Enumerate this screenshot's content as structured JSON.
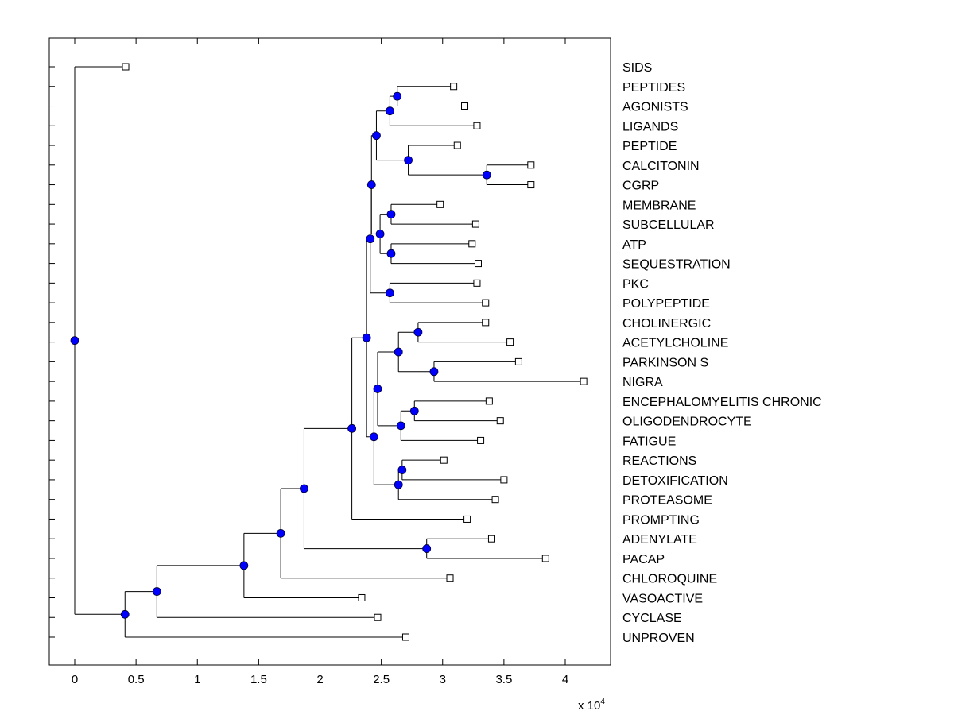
{
  "chart_data": {
    "type": "dendrogram",
    "title": "",
    "xlabel": "",
    "ylabel": "",
    "x_multiplier_label": "x 10",
    "x_multiplier_exponent": "4",
    "xlim": [
      -0.2,
      4.35
    ],
    "xticks": [
      0,
      0.5,
      1,
      1.5,
      2,
      2.5,
      3,
      3.5,
      4
    ],
    "xtick_labels": [
      "0",
      "0.5",
      "1",
      "1.5",
      "2",
      "2.5",
      "3",
      "3.5",
      "4"
    ],
    "grid": false,
    "node_color": "#0000ff",
    "leaves": [
      {
        "label": "SIDS",
        "x": 0.415
      },
      {
        "label": "PEPTIDES",
        "x": 3.09
      },
      {
        "label": "AGONISTS",
        "x": 3.18
      },
      {
        "label": "LIGANDS",
        "x": 3.28
      },
      {
        "label": "PEPTIDE",
        "x": 3.12
      },
      {
        "label": "CALCITONIN",
        "x": 3.72
      },
      {
        "label": "CGRP",
        "x": 3.72
      },
      {
        "label": "MEMBRANE",
        "x": 2.98
      },
      {
        "label": "SUBCELLULAR",
        "x": 3.27
      },
      {
        "label": "ATP",
        "x": 3.24
      },
      {
        "label": "SEQUESTRATION",
        "x": 3.29
      },
      {
        "label": "PKC",
        "x": 3.28
      },
      {
        "label": "POLYPEPTIDE",
        "x": 3.35
      },
      {
        "label": "CHOLINERGIC",
        "x": 3.35
      },
      {
        "label": "ACETYLCHOLINE",
        "x": 3.55
      },
      {
        "label": "PARKINSON S",
        "x": 3.62
      },
      {
        "label": "NIGRA",
        "x": 4.15
      },
      {
        "label": "ENCEPHALOMYELITIS CHRONIC",
        "x": 3.38
      },
      {
        "label": "OLIGODENDROCYTE",
        "x": 3.47
      },
      {
        "label": "FATIGUE",
        "x": 3.31
      },
      {
        "label": "REACTIONS",
        "x": 3.01
      },
      {
        "label": "DETOXIFICATION",
        "x": 3.5
      },
      {
        "label": "PROTEASOME",
        "x": 3.43
      },
      {
        "label": "PROMPTING",
        "x": 3.2
      },
      {
        "label": "ADENYLATE",
        "x": 3.4
      },
      {
        "label": "PACAP",
        "x": 3.84
      },
      {
        "label": "CHLOROQUINE",
        "x": 3.06
      },
      {
        "label": "VASOACTIVE",
        "x": 2.34
      },
      {
        "label": "CYCLASE",
        "x": 2.47
      },
      {
        "label": "UNPROVEN",
        "x": 2.7
      }
    ],
    "tree": {
      "x": 0.0,
      "children": [
        {
          "leaf": 0
        },
        {
          "x": 0.41,
          "children": [
            {
              "x": 0.67,
              "children": [
                {
                  "x": 1.38,
                  "children": [
                    {
                      "x": 1.68,
                      "children": [
                        {
                          "x": 1.87,
                          "children": [
                            {
                              "x": 2.26,
                              "children": [
                                {
                                  "x": 2.38,
                                  "children": [
                                    {
                                      "x": 2.41,
                                      "children": [
                                        {
                                          "x": 2.42,
                                          "children": [
                                            {
                                              "x": 2.46,
                                              "children": [
                                                {
                                                  "x": 2.57,
                                                  "children": [
                                                    {
                                                      "x": 2.63,
                                                      "children": [
                                                        {
                                                          "leaf": 1
                                                        },
                                                        {
                                                          "leaf": 2
                                                        }
                                                      ]
                                                    },
                                                    {
                                                      "leaf": 3
                                                    }
                                                  ]
                                                },
                                                {
                                                  "x": 2.72,
                                                  "children": [
                                                    {
                                                      "leaf": 4
                                                    },
                                                    {
                                                      "x": 3.36,
                                                      "children": [
                                                        {
                                                          "leaf": 5
                                                        },
                                                        {
                                                          "leaf": 6
                                                        }
                                                      ]
                                                    }
                                                  ]
                                                }
                                              ]
                                            },
                                            {
                                              "x": 2.49,
                                              "children": [
                                                {
                                                  "x": 2.58,
                                                  "children": [
                                                    {
                                                      "leaf": 7
                                                    },
                                                    {
                                                      "leaf": 8
                                                    }
                                                  ]
                                                },
                                                {
                                                  "x": 2.58,
                                                  "children": [
                                                    {
                                                      "leaf": 9
                                                    },
                                                    {
                                                      "leaf": 10
                                                    }
                                                  ]
                                                }
                                              ]
                                            }
                                          ]
                                        },
                                        {
                                          "x": 2.57,
                                          "children": [
                                            {
                                              "leaf": 11
                                            },
                                            {
                                              "leaf": 12
                                            }
                                          ]
                                        }
                                      ]
                                    },
                                    {
                                      "x": 2.44,
                                      "children": [
                                        {
                                          "x": 2.47,
                                          "children": [
                                            {
                                              "x": 2.64,
                                              "children": [
                                                {
                                                  "x": 2.8,
                                                  "children": [
                                                    {
                                                      "leaf": 13
                                                    },
                                                    {
                                                      "leaf": 14
                                                    }
                                                  ]
                                                },
                                                {
                                                  "x": 2.93,
                                                  "children": [
                                                    {
                                                      "leaf": 15
                                                    },
                                                    {
                                                      "leaf": 16
                                                    }
                                                  ]
                                                }
                                              ]
                                            },
                                            {
                                              "x": 2.66,
                                              "children": [
                                                {
                                                  "x": 2.77,
                                                  "children": [
                                                    {
                                                      "leaf": 17
                                                    },
                                                    {
                                                      "leaf": 18
                                                    }
                                                  ]
                                                },
                                                {
                                                  "leaf": 19
                                                }
                                              ]
                                            }
                                          ]
                                        },
                                        {
                                          "x": 2.64,
                                          "children": [
                                            {
                                              "x": 2.67,
                                              "children": [
                                                {
                                                  "leaf": 20
                                                },
                                                {
                                                  "leaf": 21
                                                }
                                              ]
                                            },
                                            {
                                              "leaf": 22
                                            }
                                          ]
                                        }
                                      ]
                                    }
                                  ]
                                },
                                {
                                  "leaf": 23
                                }
                              ]
                            },
                            {
                              "x": 2.87,
                              "children": [
                                {
                                  "leaf": 24
                                },
                                {
                                  "leaf": 25
                                }
                              ]
                            }
                          ]
                        },
                        {
                          "leaf": 26
                        }
                      ]
                    },
                    {
                      "leaf": 27
                    }
                  ]
                },
                {
                  "leaf": 28
                }
              ]
            },
            {
              "leaf": 29
            }
          ]
        }
      ]
    }
  }
}
